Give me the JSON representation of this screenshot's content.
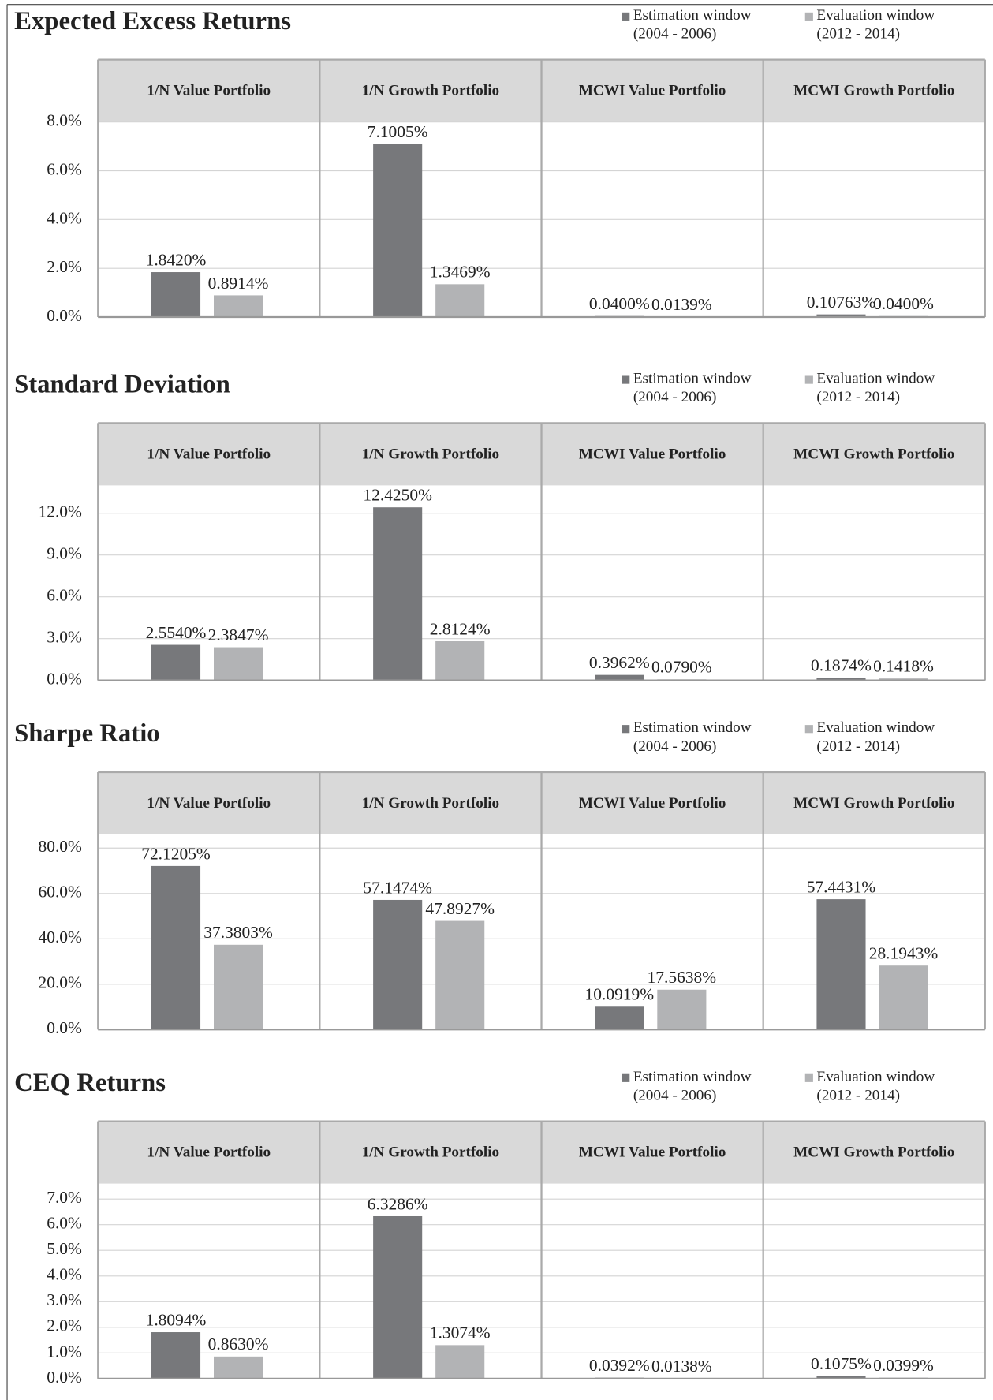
{
  "chart_data": [
    {
      "type": "bar",
      "title": "Expected Excess Returns",
      "categories": [
        "1/N Value Portfolio",
        "1/N Growth Portfolio",
        "MCWI Value Portfolio",
        "MCWI Growth Portfolio"
      ],
      "series": [
        {
          "name": "Estimation window\n(2004 - 2006)",
          "color": "#77787b",
          "values": [
            1.842,
            7.1005,
            0.04,
            0.10763
          ],
          "value_labels": [
            "1.8420%",
            "7.1005%",
            "0.0400%",
            "0.10763%"
          ]
        },
        {
          "name": "Evaluation window\n(2012 - 2014)",
          "color": "#b2b3b5",
          "values": [
            0.8914,
            1.3469,
            0.0139,
            0.04
          ],
          "value_labels": [
            "0.8914%",
            "1.3469%",
            "0.0139%",
            "0.0400%"
          ]
        }
      ],
      "ylim": [
        0,
        8
      ],
      "yticks": [
        {
          "value": 0,
          "label": "0.0%"
        },
        {
          "value": 2,
          "label": "2.0%"
        },
        {
          "value": 4,
          "label": "4.0%"
        },
        {
          "value": 6,
          "label": "6.0%"
        },
        {
          "value": 8,
          "label": "8.0%"
        }
      ],
      "grid": true
    },
    {
      "type": "bar",
      "title": "Standard Deviation",
      "categories": [
        "1/N Value Portfolio",
        "1/N Growth Portfolio",
        "MCWI Value Portfolio",
        "MCWI Growth Portfolio"
      ],
      "series": [
        {
          "name": "Estimation window\n(2004 - 2006)",
          "color": "#77787b",
          "values": [
            2.554,
            12.425,
            0.3962,
            0.1874
          ],
          "value_labels": [
            "2.5540%",
            "12.4250%",
            "0.3962%",
            "0.1874%"
          ]
        },
        {
          "name": "Evaluation window\n(2012 - 2014)",
          "color": "#b2b3b5",
          "values": [
            2.3847,
            2.8124,
            0.079,
            0.1418
          ],
          "value_labels": [
            "2.3847%",
            "2.8124%",
            "0.0790%",
            "0.1418%"
          ]
        }
      ],
      "ylim": [
        0,
        14
      ],
      "yticks": [
        {
          "value": 0,
          "label": "0.0%"
        },
        {
          "value": 3,
          "label": "3.0%"
        },
        {
          "value": 6,
          "label": "6.0%"
        },
        {
          "value": 9,
          "label": "9.0%"
        },
        {
          "value": 12,
          "label": "12.0%"
        }
      ],
      "grid": true
    },
    {
      "type": "bar",
      "title": "Sharpe Ratio",
      "categories": [
        "1/N Value Portfolio",
        "1/N Growth Portfolio",
        "MCWI Value Portfolio",
        "MCWI Growth Portfolio"
      ],
      "series": [
        {
          "name": "Estimation window\n(2004 - 2006)",
          "color": "#77787b",
          "values": [
            72.1205,
            57.1474,
            10.0919,
            57.4431
          ],
          "value_labels": [
            "72.1205%",
            "57.1474%",
            "10.0919%",
            "57.4431%"
          ]
        },
        {
          "name": "Evaluation window\n(2012 - 2014)",
          "color": "#b2b3b5",
          "values": [
            37.3803,
            47.8927,
            17.5638,
            28.1943
          ],
          "value_labels": [
            "37.3803%",
            "47.8927%",
            "17.5638%",
            "28.1943%"
          ]
        }
      ],
      "ylim": [
        0,
        86
      ],
      "yticks": [
        {
          "value": 0,
          "label": "0.0%"
        },
        {
          "value": 20,
          "label": "20.0%"
        },
        {
          "value": 40,
          "label": "40.0%"
        },
        {
          "value": 60,
          "label": "60.0%"
        },
        {
          "value": 80,
          "label": "80.0%"
        }
      ],
      "grid": true
    },
    {
      "type": "bar",
      "title": "CEQ Returns",
      "categories": [
        "1/N Value Portfolio",
        "1/N Growth Portfolio",
        "MCWI Value Portfolio",
        "MCWI Growth Portfolio"
      ],
      "series": [
        {
          "name": "Estimation window\n(2004 - 2006)",
          "color": "#77787b",
          "values": [
            1.8094,
            6.3286,
            0.0392,
            0.1075
          ],
          "value_labels": [
            "1.8094%",
            "6.3286%",
            "0.0392%",
            "0.1075%"
          ]
        },
        {
          "name": "Evaluation window\n(2012 - 2014)",
          "color": "#b2b3b5",
          "values": [
            0.863,
            1.3074,
            0.0138,
            0.0399
          ],
          "value_labels": [
            "0.8630%",
            "1.3074%",
            "0.0138%",
            "0.0399%"
          ]
        }
      ],
      "ylim": [
        0,
        7.6
      ],
      "yticks": [
        {
          "value": 0,
          "label": "0.0%"
        },
        {
          "value": 1,
          "label": "1.0%"
        },
        {
          "value": 2,
          "label": "2.0%"
        },
        {
          "value": 3,
          "label": "3.0%"
        },
        {
          "value": 4,
          "label": "4.0%"
        },
        {
          "value": 5,
          "label": "5.0%"
        },
        {
          "value": 6,
          "label": "6.0%"
        },
        {
          "value": 7,
          "label": "7.0%"
        }
      ],
      "grid": true
    }
  ]
}
